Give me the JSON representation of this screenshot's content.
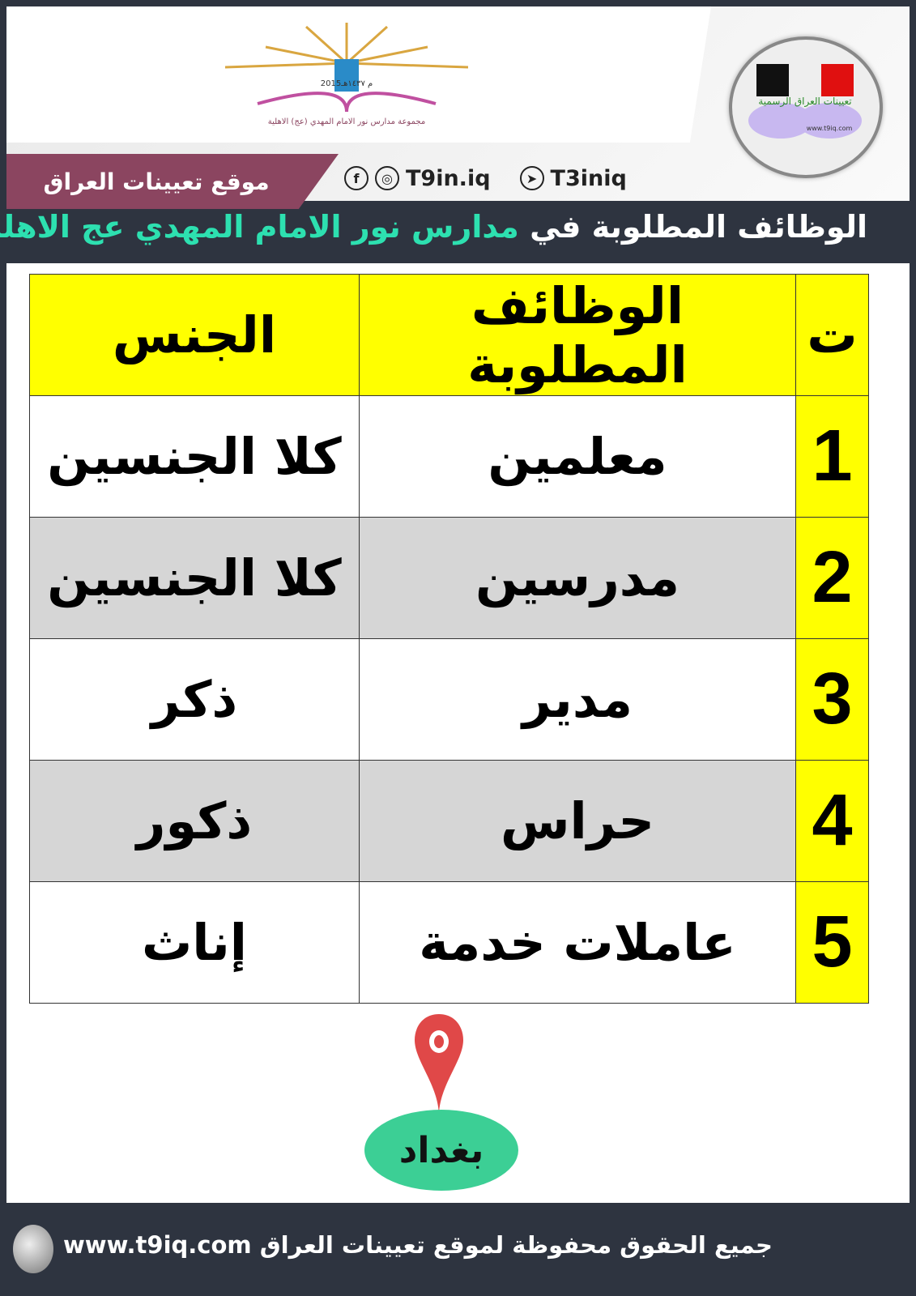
{
  "header": {
    "logo_text": "مجموعة مدارس نور الامام المهدي (عج) الاهلية",
    "logo_years": "2015م ١٤٣٧هـ",
    "badge_text": "تعيينات العراق الرسمية",
    "badge_site": "www.t9iq.com"
  },
  "brand": {
    "site_name": "موقع تعيينات العراق",
    "facebook_instagram_handle": "T9in.iq",
    "telegram_handle": "T3iniq"
  },
  "title": {
    "prefix": "الوظائف المطلوبة في",
    "highlight": "مدارس نور الامام المهدي عج الاهلية"
  },
  "table": {
    "headers": {
      "num": "ت",
      "job": "الوظائف المطلوبة",
      "gender": "الجنس"
    },
    "rows": [
      {
        "num": "1",
        "job": "معلمين",
        "gender": "كلا الجنسين"
      },
      {
        "num": "2",
        "job": "مدرسين",
        "gender": "كلا الجنسين"
      },
      {
        "num": "3",
        "job": "مدير",
        "gender": "ذكر"
      },
      {
        "num": "4",
        "job": "حراس",
        "gender": "ذكور"
      },
      {
        "num": "5",
        "job": "عاملات خدمة",
        "gender": "إناث"
      }
    ]
  },
  "location": {
    "city": "بغداد"
  },
  "footer": {
    "text": "جميع الحقوق محفوظة لموقع تعيينات العراق www.t9iq.com"
  },
  "colors": {
    "background": "#2e3440",
    "header_yellow": "#ffff00",
    "highlight": "#2de0b0",
    "brand": "#8b4560",
    "city": "#3ccf95",
    "pin": "#e04848"
  }
}
